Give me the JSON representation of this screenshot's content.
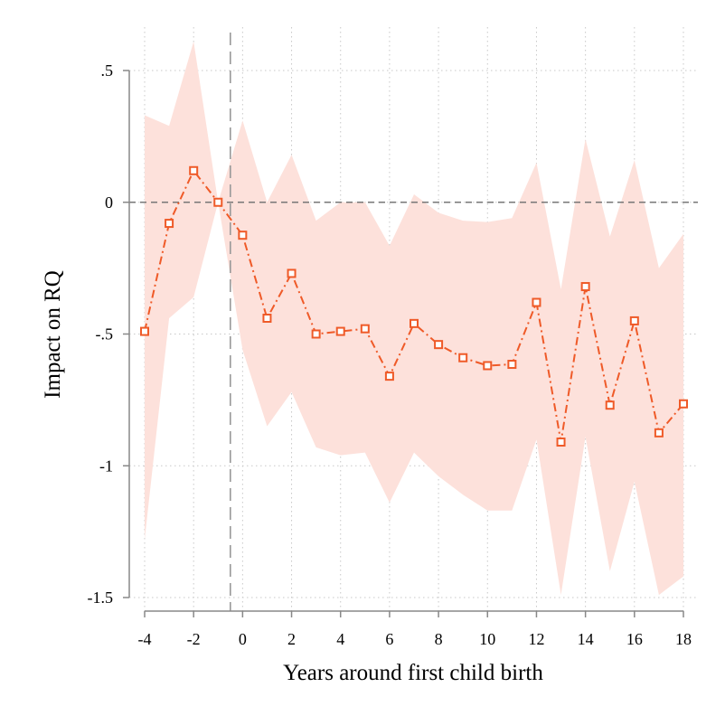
{
  "chart_data": {
    "type": "line",
    "xlabel": "Years around first child birth",
    "ylabel": "Impact on RQ",
    "xlim": [
      -4,
      18
    ],
    "ylim": [
      -1.5,
      0.5
    ],
    "xticks": [
      -4,
      -2,
      0,
      2,
      4,
      6,
      8,
      10,
      12,
      14,
      16,
      18
    ],
    "xtick_labels": [
      "-4",
      "-2",
      "0",
      "2",
      "4",
      "6",
      "8",
      "10",
      "12",
      "14",
      "16",
      "18"
    ],
    "yticks": [
      0.5,
      0,
      -0.5,
      -1,
      -1.5
    ],
    "ytick_labels": [
      ".5",
      "0",
      "-.5",
      "-1",
      "-1.5"
    ],
    "grid": true,
    "reference_lines": {
      "horizontal_y": 0,
      "vertical_x": -0.5
    },
    "series": [
      {
        "x": [
          -4,
          -3,
          -2,
          -1,
          0,
          1,
          2,
          3,
          4,
          5,
          6,
          7,
          8,
          9,
          10,
          11,
          12,
          13,
          14,
          15,
          16,
          17,
          18
        ],
        "y": [
          -0.49,
          -0.08,
          0.12,
          0.0,
          -0.125,
          -0.44,
          -0.27,
          -0.5,
          -0.49,
          -0.48,
          -0.66,
          -0.46,
          -0.54,
          -0.59,
          -0.62,
          -0.615,
          -0.38,
          -0.91,
          -0.32,
          -0.77,
          -0.45,
          -0.875,
          -0.765
        ],
        "ci_upper": [
          0.33,
          0.29,
          0.61,
          0.0,
          0.31,
          0.0,
          0.18,
          -0.07,
          0.0,
          0.0,
          -0.165,
          0.03,
          -0.04,
          -0.07,
          -0.075,
          -0.06,
          0.15,
          -0.33,
          0.24,
          -0.13,
          0.16,
          -0.25,
          -0.12
        ],
        "ci_lower": [
          -1.28,
          -0.44,
          -0.36,
          0.0,
          -0.56,
          -0.85,
          -0.72,
          -0.93,
          -0.96,
          -0.95,
          -1.14,
          -0.95,
          -1.04,
          -1.11,
          -1.17,
          -1.17,
          -0.9,
          -1.49,
          -0.89,
          -1.4,
          -1.06,
          -1.49,
          -1.42
        ]
      }
    ],
    "colors": {
      "line": "#ef5a28",
      "ci_fill": "#fde1db",
      "grid": "#c8c8c8",
      "reference": "#777777",
      "axis": "#888888"
    }
  }
}
